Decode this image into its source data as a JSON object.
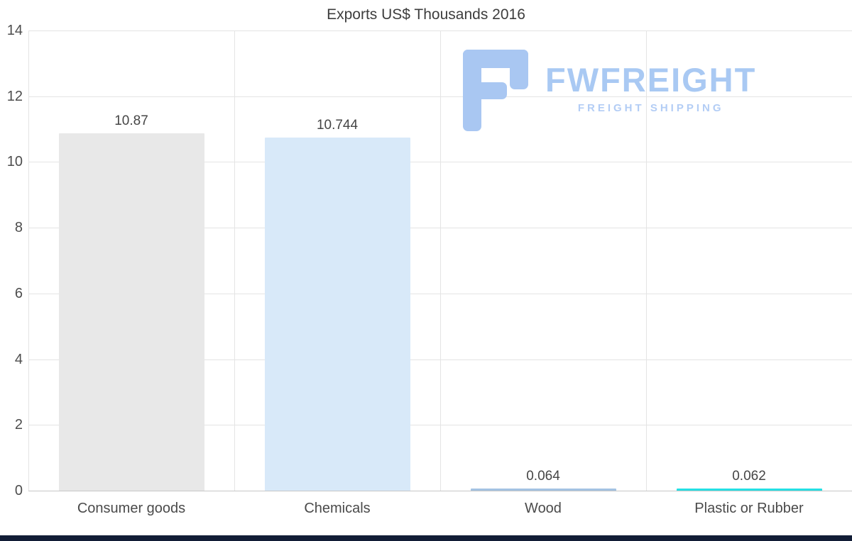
{
  "chart_data": {
    "type": "bar",
    "title": "Exports US$ Thousands 2016",
    "categories": [
      "Consumer goods",
      "Chemicals",
      "Wood",
      "Plastic or Rubber"
    ],
    "values": [
      10.87,
      10.744,
      0.064,
      0.062
    ],
    "value_labels": [
      "10.87",
      "10.744",
      "0.064",
      "0.062"
    ],
    "bar_colors": [
      "#e8e8e8",
      "#d8e9f9",
      "#a3c2e2",
      "#25e0e4"
    ],
    "ylim": [
      0,
      14
    ],
    "yticks": [
      0,
      2,
      4,
      6,
      8,
      10,
      12,
      14
    ],
    "grid": true,
    "legend": false,
    "xlabel": "",
    "ylabel": ""
  },
  "watermark": {
    "brand": "FWFREIGHT",
    "tagline": "FREIGHT SHIPPING",
    "brand_color": "#a9c9f3",
    "tagline_color": "#b3cdf5",
    "icon_color": "#a9c7f2"
  },
  "footer": {
    "strip_color": "#121d36"
  }
}
